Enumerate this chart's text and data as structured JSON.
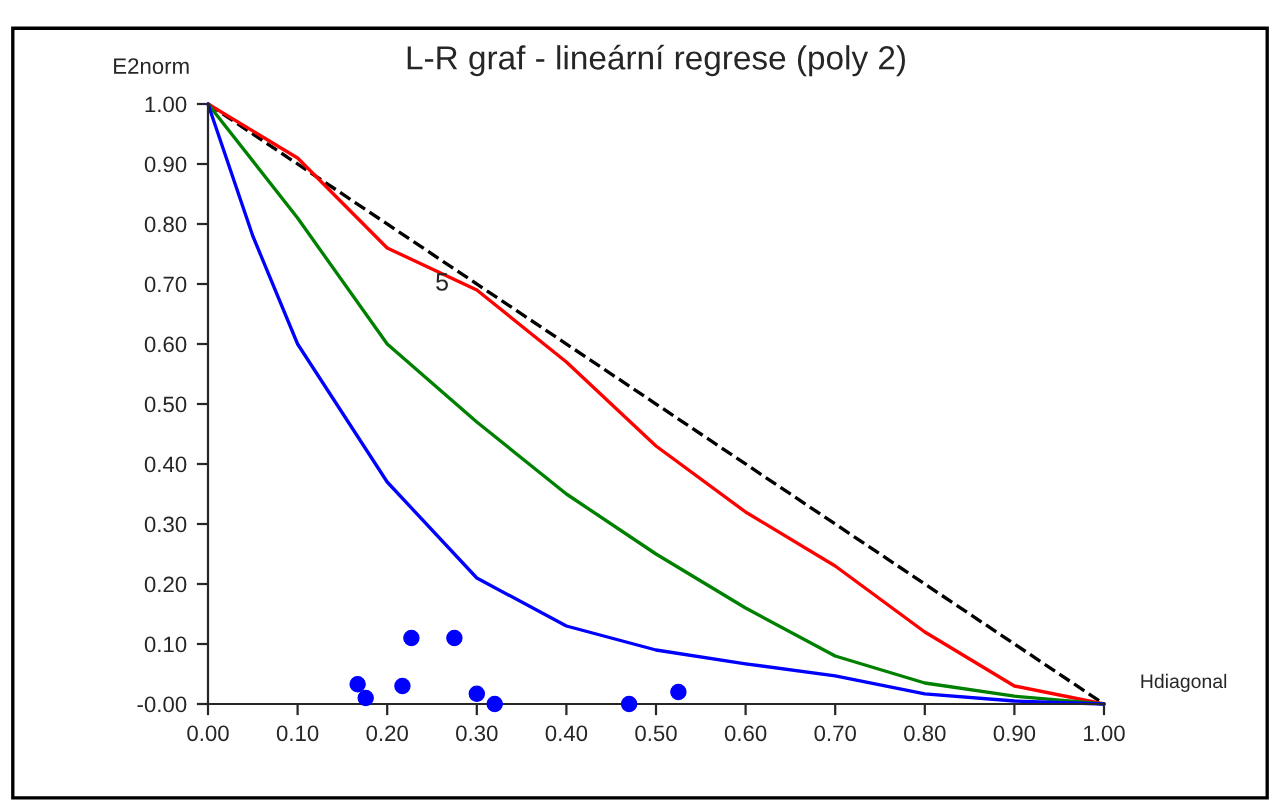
{
  "chart_data": {
    "type": "line",
    "title": "L-R graf - lineární regrese (poly 2)",
    "xlabel": "Hdiagonal",
    "ylabel": "E2norm",
    "xlim": [
      0,
      1
    ],
    "ylim": [
      0,
      1
    ],
    "xticks": [
      {
        "value": 0,
        "label": "0.00"
      },
      {
        "value": 0.1,
        "label": "0.10"
      },
      {
        "value": 0.2,
        "label": "0.20"
      },
      {
        "value": 0.3,
        "label": "0.30"
      },
      {
        "value": 0.4,
        "label": "0.40"
      },
      {
        "value": 0.5,
        "label": "0.50"
      },
      {
        "value": 0.6,
        "label": "0.60"
      },
      {
        "value": 0.7,
        "label": "0.70"
      },
      {
        "value": 0.8,
        "label": "0.80"
      },
      {
        "value": 0.9,
        "label": "0.90"
      },
      {
        "value": 1,
        "label": "1.00"
      }
    ],
    "yticks": [
      {
        "value": 0,
        "label": "-0.00"
      },
      {
        "value": 0.1,
        "label": "0.10"
      },
      {
        "value": 0.2,
        "label": "0.20"
      },
      {
        "value": 0.3,
        "label": "0.30"
      },
      {
        "value": 0.4,
        "label": "0.40"
      },
      {
        "value": 0.5,
        "label": "0.50"
      },
      {
        "value": 0.6,
        "label": "0.60"
      },
      {
        "value": 0.7,
        "label": "0.70"
      },
      {
        "value": 0.8,
        "label": "0.80"
      },
      {
        "value": 0.9,
        "label": "0.90"
      },
      {
        "value": 1,
        "label": "1.00"
      }
    ],
    "grid": false,
    "legend": false,
    "annotations": [
      {
        "text": "5",
        "x": 0.3,
        "y": 0.7
      }
    ],
    "series": [
      {
        "line_style": "dashed",
        "color": "#000000",
        "x": [
          0,
          1
        ],
        "values": [
          1,
          0
        ]
      },
      {
        "line_style": "solid",
        "color": "#ff0000",
        "x": [
          0,
          0.1,
          0.2,
          0.3,
          0.4,
          0.5,
          0.6,
          0.7,
          0.8,
          0.9,
          1
        ],
        "values": [
          1,
          0.91,
          0.76,
          0.69,
          0.57,
          0.43,
          0.32,
          0.23,
          0.12,
          0.03,
          0
        ]
      },
      {
        "line_style": "solid",
        "color": "#008000",
        "x": [
          0,
          0.1,
          0.2,
          0.3,
          0.4,
          0.5,
          0.6,
          0.7,
          0.8,
          0.9,
          1
        ],
        "values": [
          1,
          0.81,
          0.6,
          0.47,
          0.35,
          0.25,
          0.16,
          0.08,
          0.035,
          0.013,
          0
        ]
      },
      {
        "line_style": "solid",
        "color": "#0000ff",
        "x": [
          0,
          0.05,
          0.1,
          0.2,
          0.3,
          0.4,
          0.5,
          0.6,
          0.7,
          0.8,
          0.9,
          1
        ],
        "values": [
          1,
          0.78,
          0.6,
          0.37,
          0.21,
          0.13,
          0.09,
          0.067,
          0.047,
          0.017,
          0.005,
          0
        ]
      },
      {
        "type": "scatter",
        "marker": "circle",
        "color": "#0000ff",
        "x": [
          0.167,
          0.176,
          0.217,
          0.227,
          0.275,
          0.3,
          0.32,
          0.47,
          0.525
        ],
        "values": [
          0.033,
          0.01,
          0.03,
          0.11,
          0.11,
          0.017,
          0.0,
          0.0,
          0.02
        ]
      }
    ]
  }
}
